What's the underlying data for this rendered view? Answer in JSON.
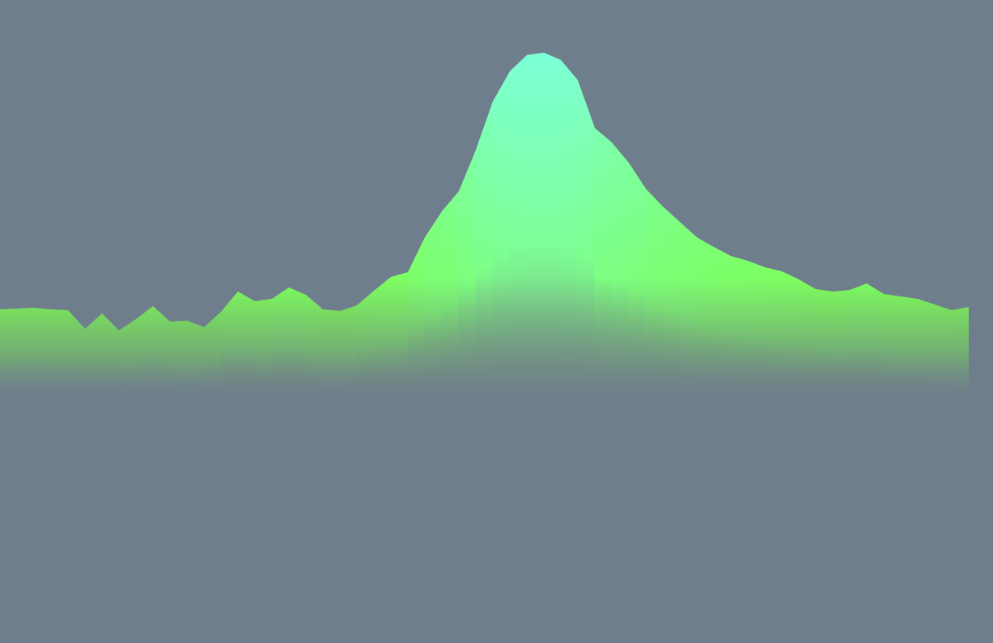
{
  "background_color": "#6f7e8c",
  "chart_data": {
    "type": "area",
    "title": "",
    "xlabel": "",
    "ylabel": "",
    "grid": false,
    "legend": "none",
    "colors": {
      "base": "#7dff4b",
      "peak": "#7dffd7",
      "fade_to": "#6f7e8c"
    },
    "ylim": [
      0,
      425
    ],
    "x": [
      0,
      1,
      2,
      3,
      4,
      5,
      6,
      7,
      8,
      9,
      10,
      11,
      12,
      13,
      14,
      15,
      16,
      17,
      18,
      19,
      20,
      21,
      22,
      23,
      24,
      25,
      26,
      27,
      28,
      29,
      30,
      31,
      32,
      33,
      34,
      35,
      36,
      37,
      38,
      39,
      40,
      41,
      42,
      43,
      44,
      45,
      46,
      47,
      48,
      49,
      50,
      51,
      52,
      53,
      54,
      55,
      56,
      57
    ],
    "series": [
      {
        "values": [
          109,
          110,
          111,
          109,
          108,
          85,
          104,
          83,
          97,
          113,
          94,
          95,
          87,
          106,
          131,
          119,
          122,
          136,
          127,
          109,
          107,
          114,
          132,
          149,
          155,
          198,
          230,
          255,
          306,
          366,
          403,
          423,
          426,
          417,
          392,
          333,
          315,
          290,
          258,
          236,
          217,
          198,
          186,
          175,
          169,
          161,
          156,
          146,
          134,
          131,
          133,
          141,
          128,
          125,
          122,
          115,
          108,
          112
        ]
      }
    ]
  }
}
